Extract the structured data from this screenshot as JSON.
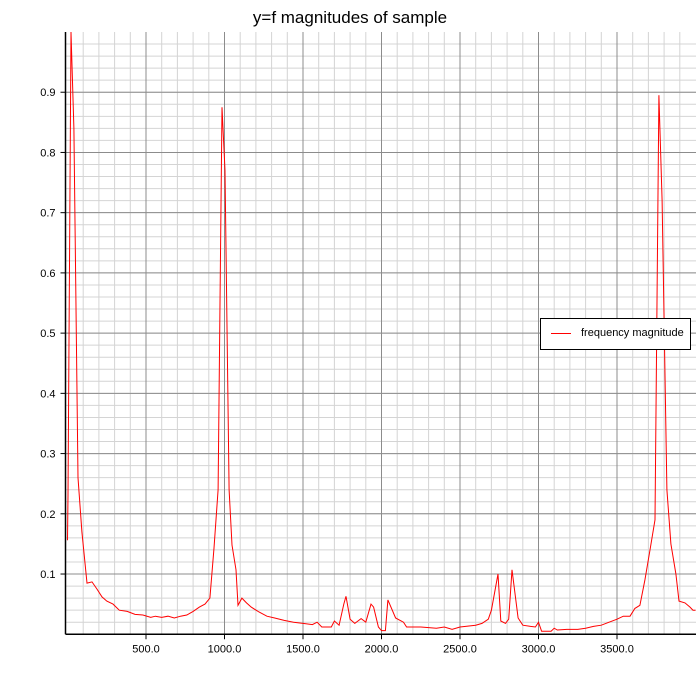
{
  "chart_data": {
    "type": "line",
    "title": "y=f magnitudes of sample",
    "xlabel": "",
    "ylabel": "",
    "xlim": [
      0,
      4000
    ],
    "ylim": [
      0,
      1.0
    ],
    "x_ticks": [
      "500.0",
      "1000.0",
      "1500.0",
      "2000.0",
      "2500.0",
      "3000.0",
      "3500.0"
    ],
    "y_ticks": [
      "0.1",
      "0.2",
      "0.3",
      "0.4",
      "0.5",
      "0.6",
      "0.7",
      "0.8",
      "0.9"
    ],
    "grid": true,
    "legend_position": "right",
    "series": [
      {
        "name": "frequency magnitude",
        "color": "#ff0000",
        "points": [
          [
            0,
            0.156
          ],
          [
            3,
            0.23
          ],
          [
            22,
            1.0
          ],
          [
            41,
            0.84
          ],
          [
            67,
            0.26
          ],
          [
            92,
            0.17
          ],
          [
            124,
            0.085
          ],
          [
            156,
            0.087
          ],
          [
            188,
            0.075
          ],
          [
            220,
            0.062
          ],
          [
            250,
            0.055
          ],
          [
            290,
            0.05
          ],
          [
            330,
            0.04
          ],
          [
            380,
            0.038
          ],
          [
            430,
            0.033
          ],
          [
            480,
            0.032
          ],
          [
            530,
            0.028
          ],
          [
            560,
            0.03
          ],
          [
            600,
            0.028
          ],
          [
            640,
            0.03
          ],
          [
            680,
            0.027
          ],
          [
            720,
            0.03
          ],
          [
            760,
            0.032
          ],
          [
            800,
            0.038
          ],
          [
            840,
            0.045
          ],
          [
            876,
            0.05
          ],
          [
            907,
            0.06
          ],
          [
            933,
            0.143
          ],
          [
            959,
            0.24
          ],
          [
            984,
            0.875
          ],
          [
            1003,
            0.77
          ],
          [
            1029,
            0.24
          ],
          [
            1048,
            0.148
          ],
          [
            1073,
            0.107
          ],
          [
            1086,
            0.048
          ],
          [
            1111,
            0.06
          ],
          [
            1140,
            0.052
          ],
          [
            1170,
            0.045
          ],
          [
            1220,
            0.037
          ],
          [
            1270,
            0.03
          ],
          [
            1320,
            0.027
          ],
          [
            1380,
            0.023
          ],
          [
            1440,
            0.02
          ],
          [
            1500,
            0.018
          ],
          [
            1560,
            0.016
          ],
          [
            1590,
            0.02
          ],
          [
            1620,
            0.012
          ],
          [
            1680,
            0.012
          ],
          [
            1700,
            0.022
          ],
          [
            1730,
            0.015
          ],
          [
            1760,
            0.05
          ],
          [
            1774,
            0.063
          ],
          [
            1800,
            0.025
          ],
          [
            1830,
            0.018
          ],
          [
            1870,
            0.026
          ],
          [
            1900,
            0.02
          ],
          [
            1933,
            0.05
          ],
          [
            1950,
            0.045
          ],
          [
            1980,
            0.012
          ],
          [
            2000,
            0.006
          ],
          [
            2025,
            0.006
          ],
          [
            2041,
            0.057
          ],
          [
            2090,
            0.027
          ],
          [
            2140,
            0.02
          ],
          [
            2160,
            0.012
          ],
          [
            2250,
            0.012
          ],
          [
            2350,
            0.01
          ],
          [
            2400,
            0.012
          ],
          [
            2450,
            0.008
          ],
          [
            2500,
            0.012
          ],
          [
            2600,
            0.015
          ],
          [
            2640,
            0.018
          ],
          [
            2680,
            0.025
          ],
          [
            2700,
            0.04
          ],
          [
            2742,
            0.1
          ],
          [
            2760,
            0.022
          ],
          [
            2790,
            0.018
          ],
          [
            2810,
            0.025
          ],
          [
            2831,
            0.107
          ],
          [
            2870,
            0.027
          ],
          [
            2900,
            0.015
          ],
          [
            2950,
            0.013
          ],
          [
            2980,
            0.012
          ],
          [
            3000,
            0.02
          ],
          [
            3020,
            0.005
          ],
          [
            3080,
            0.005
          ],
          [
            3100,
            0.01
          ],
          [
            3120,
            0.007
          ],
          [
            3180,
            0.008
          ],
          [
            3250,
            0.008
          ],
          [
            3300,
            0.01
          ],
          [
            3350,
            0.013
          ],
          [
            3400,
            0.015
          ],
          [
            3450,
            0.02
          ],
          [
            3500,
            0.025
          ],
          [
            3540,
            0.03
          ],
          [
            3583,
            0.03
          ],
          [
            3614,
            0.043
          ],
          [
            3646,
            0.048
          ],
          [
            3678,
            0.09
          ],
          [
            3710,
            0.14
          ],
          [
            3742,
            0.19
          ],
          [
            3767,
            0.895
          ],
          [
            3787,
            0.72
          ],
          [
            3818,
            0.24
          ],
          [
            3843,
            0.15
          ],
          [
            3875,
            0.1
          ],
          [
            3895,
            0.055
          ],
          [
            3933,
            0.052
          ],
          [
            3965,
            0.045
          ],
          [
            3984,
            0.04
          ],
          [
            4000,
            0.04
          ]
        ]
      }
    ]
  }
}
